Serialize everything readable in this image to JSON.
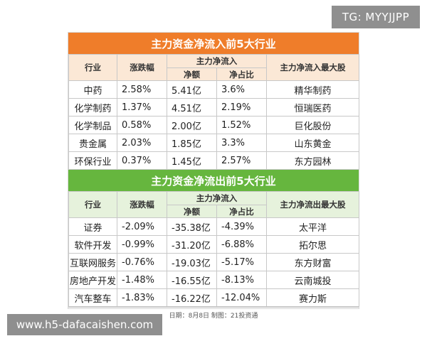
{
  "badge": "TG: MYYJJPP",
  "inflow": {
    "title": "主力资金净流入前5大行业",
    "headers": {
      "industry": "行业",
      "change": "涨跌幅",
      "group": "主力净流入",
      "net": "净额",
      "ratio": "净占比",
      "top_stock": "主力净流入最大股"
    },
    "rows": [
      {
        "industry": "中药",
        "change": "2.58%",
        "net": "5.41亿",
        "ratio": "3.6%",
        "stock": "精华制药"
      },
      {
        "industry": "化学制药",
        "change": "1.37%",
        "net": "4.51亿",
        "ratio": "2.19%",
        "stock": "恒瑞医药"
      },
      {
        "industry": "化学制品",
        "change": "0.58%",
        "net": "2.00亿",
        "ratio": "1.52%",
        "stock": "巨化股份"
      },
      {
        "industry": "贵金属",
        "change": "2.03%",
        "net": "1.85亿",
        "ratio": "3.3%",
        "stock": "山东黄金"
      },
      {
        "industry": "环保行业",
        "change": "0.37%",
        "net": "1.45亿",
        "ratio": "2.57%",
        "stock": "东方园林"
      }
    ]
  },
  "outflow": {
    "title": "主力资金净流出前5大行业",
    "headers": {
      "industry": "行业",
      "change": "涨跌幅",
      "group": "主力净流入",
      "net": "净额",
      "ratio": "净占比",
      "top_stock": "主力净流出最大股"
    },
    "rows": [
      {
        "industry": "证券",
        "change": "-2.09%",
        "net": "-35.38亿",
        "ratio": "-4.39%",
        "stock": "太平洋"
      },
      {
        "industry": "软件开发",
        "change": "-0.99%",
        "net": "-31.20亿",
        "ratio": "-6.88%",
        "stock": "拓尔思"
      },
      {
        "industry": "互联网服务",
        "change": "-0.76%",
        "net": "-19.03亿",
        "ratio": "-5.17%",
        "stock": "东方财富"
      },
      {
        "industry": "房地产开发",
        "change": "-1.48%",
        "net": "-16.55亿",
        "ratio": "-8.13%",
        "stock": "云南城投"
      },
      {
        "industry": "汽车整车",
        "change": "-1.83%",
        "net": "-16.22亿",
        "ratio": "-12.04%",
        "stock": "赛力斯"
      }
    ]
  },
  "footer": "日期：8月8日 制图：21投资通",
  "watermark": "www.h5-dafacaishen.com"
}
